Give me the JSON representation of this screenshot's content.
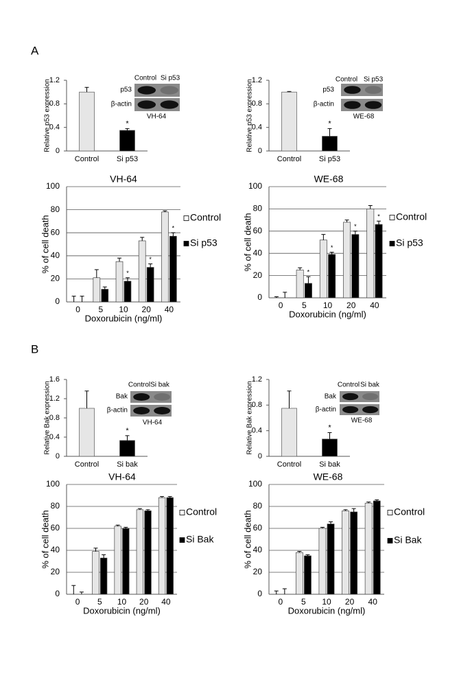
{
  "panel_labels": [
    "A",
    "B"
  ],
  "chart_data": [
    {
      "type": "bar",
      "ylabel": "Relative p53 expression",
      "categories": [
        "Control",
        "Si p53"
      ],
      "values": [
        1.0,
        0.35
      ],
      "errors": [
        0.08,
        0.03
      ],
      "colors": [
        "#e6e6e6",
        "#000000"
      ],
      "annotations": [
        null,
        "*"
      ],
      "ylim": [
        0,
        1.2
      ],
      "yticks": [
        0,
        0.4,
        0.8,
        1.2
      ],
      "grid": false,
      "inset": {
        "column_labels": [
          "Control",
          "Si p53"
        ],
        "row_labels": [
          "p53",
          "β-actin"
        ],
        "cell_line": "VH-64"
      }
    },
    {
      "type": "bar",
      "ylabel": "Relative p53 expression",
      "categories": [
        "Control",
        "Si p53"
      ],
      "values": [
        1.0,
        0.25
      ],
      "errors": [
        0.01,
        0.13
      ],
      "colors": [
        "#e6e6e6",
        "#000000"
      ],
      "annotations": [
        null,
        "*"
      ],
      "ylim": [
        0,
        1.2
      ],
      "yticks": [
        0,
        0.4,
        0.8,
        1.2
      ],
      "grid": false,
      "inset": {
        "column_labels": [
          "Control",
          "Si p53"
        ],
        "row_labels": [
          "p53",
          "β-actin"
        ],
        "cell_line": "WE-68"
      }
    },
    {
      "type": "grouped_bar",
      "title": "VH-64",
      "ylabel": "% of cell death",
      "xlabel": "Doxorubicin  (ng/ml)",
      "categories": [
        "0",
        "5",
        "10",
        "20",
        "40"
      ],
      "series": [
        {
          "name": "Control",
          "color": "#e6e6e6",
          "values": [
            0,
            21,
            35,
            53,
            78
          ],
          "errors": [
            5,
            7,
            3,
            3,
            1
          ],
          "annotations": [
            null,
            null,
            null,
            null,
            null
          ]
        },
        {
          "name": "Si p53",
          "color": "#000000",
          "values": [
            0,
            11,
            18,
            30,
            57
          ],
          "errors": [
            5,
            2,
            3,
            3,
            3
          ],
          "annotations": [
            null,
            null,
            "*",
            "*",
            "*"
          ]
        }
      ],
      "ylim": [
        0,
        100
      ],
      "yticks": [
        0,
        20,
        40,
        60,
        80,
        100
      ],
      "grid": true,
      "legend": "right"
    },
    {
      "type": "grouped_bar",
      "title": "WE-68",
      "ylabel": "% of cell death",
      "xlabel": "Doxorubicin  (ng/ml)",
      "categories": [
        "0",
        "5",
        "10",
        "20",
        "40"
      ],
      "series": [
        {
          "name": "Control",
          "color": "#e6e6e6",
          "values": [
            0,
            25,
            52,
            68,
            80
          ],
          "errors": [
            1,
            2,
            5,
            2,
            3
          ],
          "annotations": [
            null,
            null,
            null,
            null,
            null
          ]
        },
        {
          "name": "Si p53",
          "color": "#000000",
          "values": [
            0,
            13,
            39,
            57,
            66
          ],
          "errors": [
            5,
            6,
            2,
            3,
            3
          ],
          "annotations": [
            null,
            "*",
            "*",
            "*",
            "*"
          ]
        }
      ],
      "ylim": [
        0,
        100
      ],
      "yticks": [
        0,
        20,
        40,
        60,
        80,
        100
      ],
      "grid": true,
      "legend": "right"
    },
    {
      "type": "bar",
      "ylabel": "Relative Bak expression",
      "categories": [
        "Control",
        "Si bak"
      ],
      "values": [
        1.0,
        0.33
      ],
      "errors": [
        0.36,
        0.1
      ],
      "colors": [
        "#e6e6e6",
        "#000000"
      ],
      "annotations": [
        null,
        "*"
      ],
      "ylim": [
        0,
        1.6
      ],
      "yticks": [
        0,
        0.4,
        0.8,
        1.2,
        1.6
      ],
      "grid": false,
      "inset": {
        "column_labels": [
          "Control",
          "Si bak"
        ],
        "row_labels": [
          "Bak",
          "β-actin"
        ],
        "cell_line": "VH-64"
      }
    },
    {
      "type": "bar",
      "ylabel": "Relative  Bak expression",
      "categories": [
        "Control",
        "Si bak"
      ],
      "values": [
        0.75,
        0.27
      ],
      "errors": [
        0.27,
        0.1
      ],
      "colors": [
        "#e6e6e6",
        "#000000"
      ],
      "annotations": [
        null,
        "*"
      ],
      "ylim": [
        0,
        1.2
      ],
      "yticks": [
        0,
        0.4,
        0.8,
        1.2
      ],
      "grid": false,
      "inset": {
        "column_labels": [
          "Control",
          "Si bak"
        ],
        "row_labels": [
          "Bak",
          "β-actin"
        ],
        "cell_line": "WE-68"
      }
    },
    {
      "type": "grouped_bar",
      "title": "VH-64",
      "ylabel": "% of cell death",
      "xlabel": "Doxorubicin  (ng/ml)",
      "categories": [
        "0",
        "5",
        "10",
        "20",
        "40"
      ],
      "series": [
        {
          "name": "Control",
          "color": "#e6e6e6",
          "values": [
            0,
            39,
            62,
            77,
            88
          ],
          "errors": [
            8,
            3,
            1,
            1,
            1
          ],
          "annotations": [
            null,
            null,
            null,
            null,
            null
          ]
        },
        {
          "name": "Si Bak",
          "color": "#000000",
          "values": [
            0,
            33,
            60,
            76,
            88
          ],
          "errors": [
            2,
            3,
            1,
            1,
            1
          ],
          "annotations": [
            null,
            null,
            null,
            null,
            null
          ]
        }
      ],
      "ylim": [
        0,
        100
      ],
      "yticks": [
        0,
        20,
        40,
        60,
        80,
        100
      ],
      "grid": true,
      "legend": "right"
    },
    {
      "type": "grouped_bar",
      "title": "WE-68",
      "ylabel": "% of cell death",
      "xlabel": "Doxorubicin  (ng/ml)",
      "categories": [
        "0",
        "5",
        "10",
        "20",
        "40"
      ],
      "series": [
        {
          "name": "Control",
          "color": "#e6e6e6",
          "values": [
            0,
            38,
            60,
            76,
            83
          ],
          "errors": [
            3,
            1,
            1,
            1,
            1
          ],
          "annotations": [
            null,
            null,
            null,
            null,
            null
          ]
        },
        {
          "name": "Si Bak",
          "color": "#000000",
          "values": [
            0,
            35,
            64,
            75,
            85
          ],
          "errors": [
            5,
            1,
            2,
            3,
            1
          ],
          "annotations": [
            null,
            null,
            null,
            null,
            null
          ]
        }
      ],
      "ylim": [
        0,
        100
      ],
      "yticks": [
        0,
        20,
        40,
        60,
        80,
        100
      ],
      "grid": true,
      "legend": "right"
    }
  ]
}
